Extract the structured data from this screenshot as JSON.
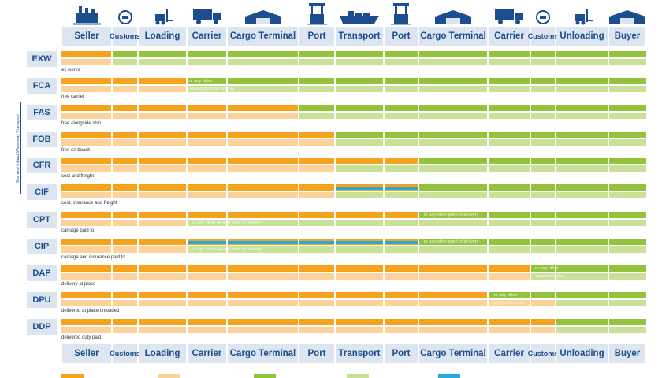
{
  "columns": [
    "Seller",
    "Customs",
    "Loading",
    "Carrier",
    "Cargo Terminal",
    "Port",
    "Transport",
    "Port",
    "Cargo Terminal",
    "Carrier",
    "Customs",
    "Unloading",
    "Buyer"
  ],
  "side_label": "Sea and Inland Waterway Transport",
  "colors": {
    "seller_costs": "#f7a21c",
    "seller_risk": "#fcd29b",
    "buyer_costs": "#93c23c",
    "buyer_risk": "#c8e197",
    "insurance": "#29a8dc"
  },
  "terms": [
    {
      "code": "EXW",
      "desc": "ex works",
      "notes": []
    },
    {
      "code": "FCA",
      "desc": "free carrier",
      "notes": [
        "or any other",
        "agreed point of delivery"
      ]
    },
    {
      "code": "FAS",
      "desc": "free alongside ship",
      "notes": []
    },
    {
      "code": "FOB",
      "desc": "free on board",
      "notes": []
    },
    {
      "code": "CFR",
      "desc": "cost and freight",
      "notes": []
    },
    {
      "code": "CIF",
      "desc": "cost, insurance and freight",
      "notes": []
    },
    {
      "code": "CPT",
      "desc": "carriage paid to",
      "notes": [
        "or any other point of delivery",
        "or any other agreed point of delivery"
      ]
    },
    {
      "code": "CIP",
      "desc": "carriage and insurance paid to",
      "notes": [
        "or any other point of delivery",
        "or any other agreed point of delivery"
      ]
    },
    {
      "code": "DAP",
      "desc": "delivery at place",
      "notes": [
        "or any other",
        "agreed location"
      ]
    },
    {
      "code": "DPU",
      "desc": "delivered at place unloaded",
      "notes": [
        "or any other",
        "agreed location"
      ]
    },
    {
      "code": "DDP",
      "desc": "delivered duty paid",
      "notes": []
    }
  ]
}
